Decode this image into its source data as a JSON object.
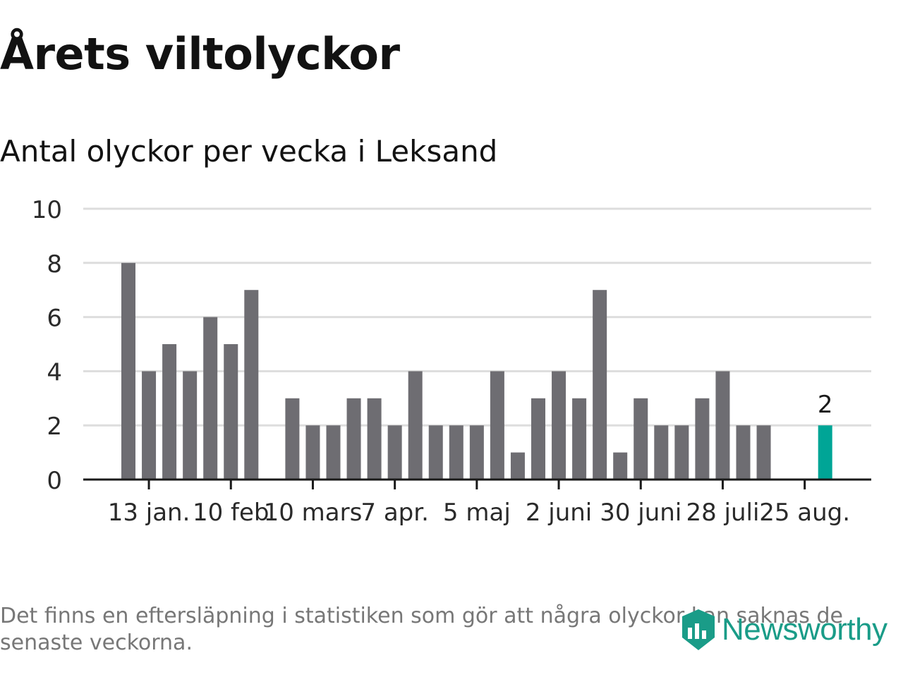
{
  "title": "Årets viltolyckor",
  "subtitle": "Antal olyckor per vecka i Leksand",
  "footnote": "Det finns en eftersläpning i statistiken som gör att några olyckor kan saknas de senaste veckorna.",
  "brand": {
    "name": "Newsworthy",
    "color": "#1a9c88",
    "icon": "newsworthy-logo-icon"
  },
  "colors": {
    "bar": "#6e6d72",
    "highlight": "#00a596",
    "grid": "#dddddd",
    "axis": "#1a1a1a"
  },
  "chart_data": {
    "type": "bar",
    "title": "Årets viltolyckor",
    "subtitle": "Antal olyckor per vecka i Leksand",
    "x_tick_labels": [
      "13 jan.",
      "10 feb",
      "10 mars",
      "7 apr.",
      "5 maj",
      "2 juni",
      "30 juni",
      "28 juli",
      "25 aug."
    ],
    "ylim": [
      0,
      10
    ],
    "yticks": [
      0,
      2,
      4,
      6,
      8,
      10
    ],
    "grid": true,
    "values": [
      8,
      4,
      5,
      4,
      6,
      5,
      7,
      null,
      3,
      2,
      2,
      3,
      3,
      2,
      4,
      2,
      2,
      2,
      4,
      1,
      3,
      4,
      3,
      7,
      1,
      3,
      2,
      2,
      3,
      4,
      2,
      2,
      null,
      null,
      2
    ],
    "highlight_last": true,
    "highlight_label": "2"
  }
}
